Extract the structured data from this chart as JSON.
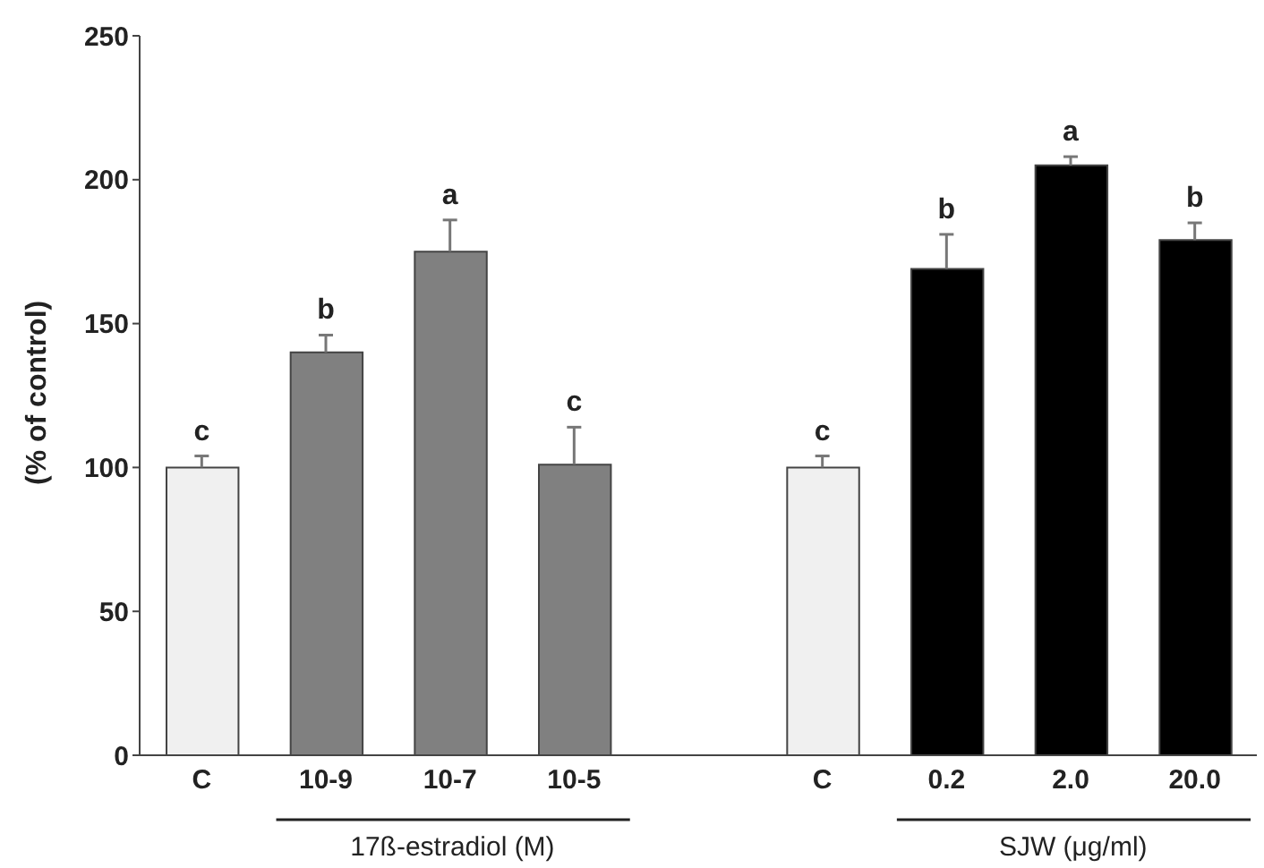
{
  "chart_data": {
    "type": "bar",
    "ylabel": "(% of control)",
    "categories": [
      "C",
      "10-9",
      "10-7",
      "10-5",
      null,
      "C",
      "0.2",
      "2.0",
      "20.0"
    ],
    "values": [
      100,
      140,
      175,
      101,
      null,
      100,
      169,
      205,
      179
    ],
    "colors": [
      "#f0f0f0",
      "#808080",
      "#808080",
      "#808080",
      null,
      "#f0f0f0",
      "#000000",
      "#000000",
      "#000000"
    ],
    "errors": [
      [
        100,
        104
      ],
      [
        140,
        146
      ],
      [
        175,
        186
      ],
      [
        101,
        114
      ],
      null,
      [
        100,
        104
      ],
      [
        169,
        181
      ],
      [
        205,
        208
      ],
      [
        179,
        185
      ]
    ],
    "value_labels": [
      "c",
      "b",
      "a",
      "c",
      null,
      "c",
      "b",
      "a",
      "b"
    ],
    "annotations": [
      "17ß-estradiol (M)",
      "SJW (μg/ml)"
    ],
    "ylim": [
      0,
      250
    ],
    "yticks": [
      0,
      50,
      100,
      150,
      200,
      250
    ],
    "grid": false,
    "legend": false
  }
}
